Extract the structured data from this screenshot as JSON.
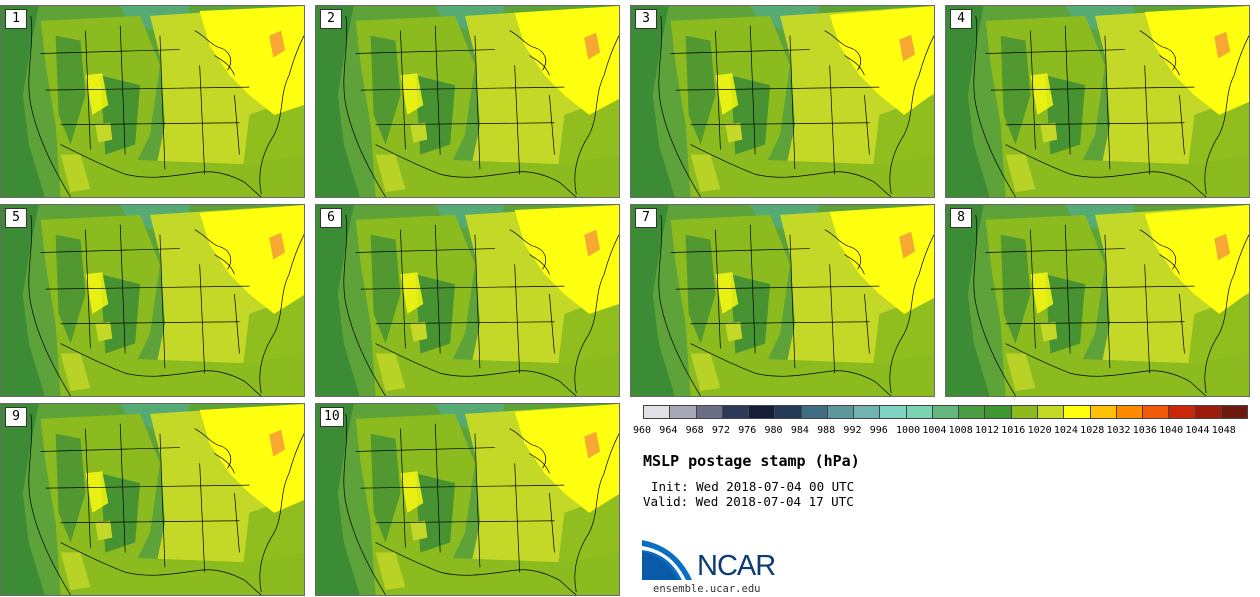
{
  "panels": [
    {
      "label": "1"
    },
    {
      "label": "2"
    },
    {
      "label": "3"
    },
    {
      "label": "4"
    },
    {
      "label": "5"
    },
    {
      "label": "6"
    },
    {
      "label": "7"
    },
    {
      "label": "8"
    },
    {
      "label": "9"
    },
    {
      "label": "10"
    }
  ],
  "colorbar": {
    "ticks": [
      "960",
      "964",
      "968",
      "972",
      "976",
      "980",
      "984",
      "988",
      "992",
      "996",
      "1000",
      "1004",
      "1008",
      "1012",
      "1016",
      "1020",
      "1024",
      "1028",
      "1032",
      "1036",
      "1040",
      "1044",
      "1048"
    ],
    "colors": [
      "#e0e0e6",
      "#a8a9b8",
      "#6a6f86",
      "#2d3a57",
      "#141e36",
      "#223a56",
      "#3f6d83",
      "#5d969b",
      "#72b3b2",
      "#7fd4c3",
      "#7ad4b3",
      "#64b87e",
      "#4c9e45",
      "#3f9734",
      "#8bbb1f",
      "#c3d827",
      "#ffff10",
      "#ffc106",
      "#ff8a00",
      "#f05a08",
      "#c82708",
      "#9e1a0d",
      "#6e1b0f"
    ]
  },
  "title": "MSLP postage stamp (hPa)",
  "init": "Init: Wed 2018-07-04 00 UTC",
  "valid": "Valid: Wed 2018-07-04 17 UTC",
  "logo": {
    "text": "NCAR",
    "url": "ensemble.ucar.edu"
  },
  "map_colors": {
    "dark_green": "#3c8c35",
    "green": "#5ea33a",
    "lime": "#8bbb1f",
    "yellow_green": "#c3d827",
    "yellow": "#ffff10",
    "orange": "#f7a833",
    "teal": "#55ab73"
  }
}
